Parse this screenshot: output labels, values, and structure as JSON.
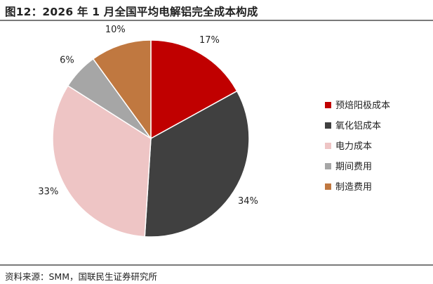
{
  "title": "图12：2026 年 1 月全国平均电解铝完全成本构成",
  "source": "资料来源：SMM，国联民生证券研究所",
  "chart_data": {
    "type": "pie",
    "title": "图12：2026 年 1 月全国平均电解铝完全成本构成",
    "legend_position": "right",
    "slices": [
      {
        "name": "预焙阳极成本",
        "value": 17,
        "label": "17%",
        "color": "#c00000"
      },
      {
        "name": "氧化铝成本",
        "value": 34,
        "label": "34%",
        "color": "#404040"
      },
      {
        "name": "电力成本",
        "value": 33,
        "label": "33%",
        "color": "#eec5c5"
      },
      {
        "name": "期间费用",
        "value": 6,
        "label": "6%",
        "color": "#a6a6a6"
      },
      {
        "name": "制造费用",
        "value": 10,
        "label": "10%",
        "color": "#c07840"
      }
    ]
  }
}
